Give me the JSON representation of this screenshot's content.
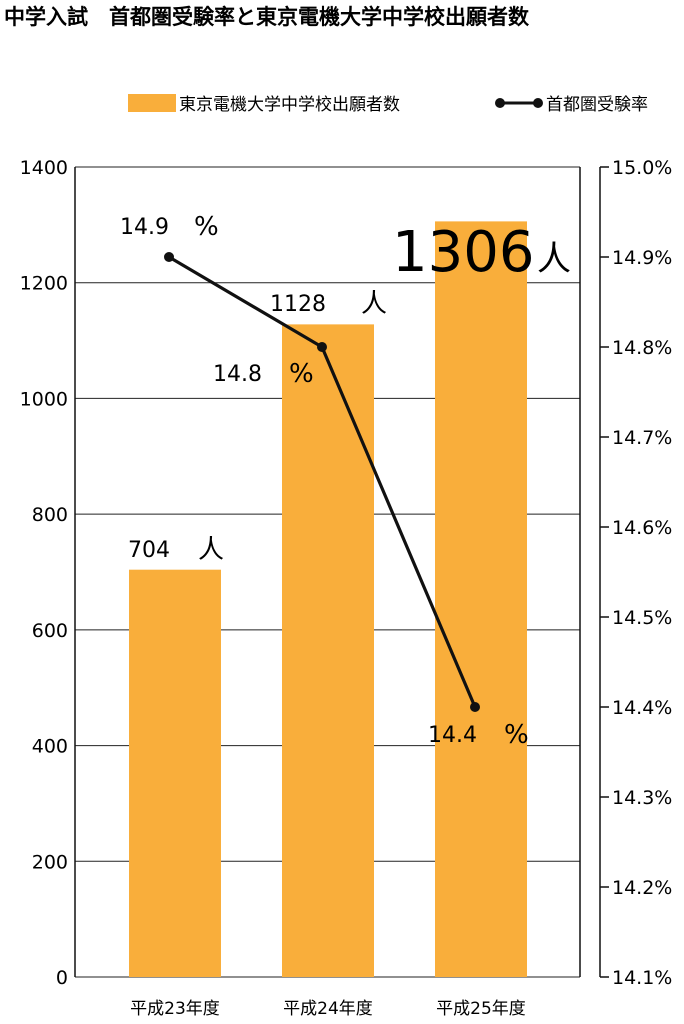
{
  "chart_data": {
    "type": "bar",
    "title": "中学入試　首都圏受験率と東京電機大学中学校出願者数",
    "categories": [
      "平成23年度",
      "平成24年度",
      "平成25年度"
    ],
    "series": [
      {
        "name": "東京電機大学中学校出願者数",
        "type": "bar",
        "axis": "left",
        "values": [
          704,
          1128,
          1306
        ],
        "value_labels": [
          "704",
          "1128",
          "1306"
        ],
        "unit": "人",
        "color": "#F9AE3B"
      },
      {
        "name": "首都圏受験率",
        "type": "line",
        "axis": "right",
        "values": [
          14.9,
          14.8,
          14.4
        ],
        "value_labels": [
          "14.9",
          "14.8",
          "14.4"
        ],
        "unit": "%",
        "color": "#111111"
      }
    ],
    "left_axis": {
      "ylim": [
        0,
        1400
      ],
      "ticks": [
        "0",
        "200",
        "400",
        "600",
        "800",
        "1000",
        "1200",
        "1400"
      ]
    },
    "right_axis": {
      "ylim": [
        14.1,
        15.0
      ],
      "ticks": [
        "14.1%",
        "14.2%",
        "14.3%",
        "14.4%",
        "14.5%",
        "14.6%",
        "14.7%",
        "14.8%",
        "14.9%",
        "15.0%"
      ]
    },
    "grid": true,
    "legend_position": "top-right"
  }
}
